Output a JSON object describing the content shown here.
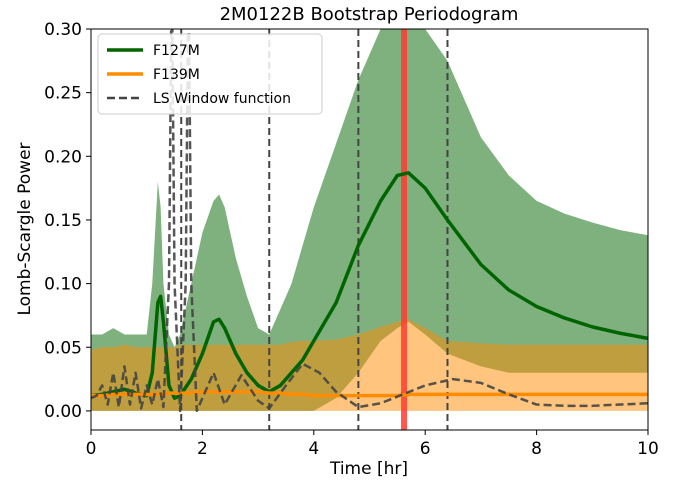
{
  "chart_data": {
    "type": "line",
    "title": "2M0122B Bootstrap Periodogram",
    "xlabel": "Time [hr]",
    "ylabel": "Lomb-Scargle Power",
    "xlim": [
      0,
      10
    ],
    "ylim": [
      -0.015,
      0.3
    ],
    "xticks": [
      0,
      2,
      4,
      6,
      8,
      10
    ],
    "yticks": [
      {
        "value": 0,
        "label": "0.00"
      },
      {
        "value": 0.05,
        "label": "0.05"
      },
      {
        "value": 0.1,
        "label": "0.10"
      },
      {
        "value": 0.15,
        "label": "0.15"
      },
      {
        "value": 0.2,
        "label": "0.20"
      },
      {
        "value": 0.25,
        "label": "0.25"
      },
      {
        "value": 0.3,
        "label": "0.30"
      }
    ],
    "legend": "upper left",
    "vlines": [
      1.62,
      3.2,
      4.8,
      6.4
    ],
    "vline_color": "#444444",
    "highlight_x": 5.62,
    "highlight_color": "#ff3b2f",
    "series": [
      {
        "name": "F127M",
        "color": "#006400",
        "style": "solid",
        "x": [
          0,
          0.2,
          0.4,
          0.6,
          0.8,
          1.0,
          1.1,
          1.2,
          1.25,
          1.3,
          1.4,
          1.5,
          1.6,
          1.8,
          2.0,
          2.2,
          2.3,
          2.4,
          2.6,
          2.8,
          3.0,
          3.2,
          3.4,
          3.6,
          3.8,
          4.0,
          4.4,
          4.8,
          5.2,
          5.5,
          5.7,
          6.0,
          6.4,
          7.0,
          7.5,
          8.0,
          8.5,
          9.0,
          9.5,
          10
        ],
        "values": [
          0.012,
          0.013,
          0.015,
          0.017,
          0.014,
          0.012,
          0.03,
          0.085,
          0.09,
          0.07,
          0.02,
          0.01,
          0.012,
          0.025,
          0.045,
          0.07,
          0.072,
          0.065,
          0.045,
          0.03,
          0.02,
          0.015,
          0.02,
          0.03,
          0.04,
          0.055,
          0.085,
          0.13,
          0.165,
          0.185,
          0.187,
          0.175,
          0.15,
          0.115,
          0.095,
          0.082,
          0.073,
          0.066,
          0.061,
          0.057
        ],
        "upper": [
          0.06,
          0.06,
          0.065,
          0.06,
          0.06,
          0.06,
          0.1,
          0.18,
          0.16,
          0.1,
          0.06,
          0.05,
          0.06,
          0.1,
          0.14,
          0.165,
          0.17,
          0.16,
          0.12,
          0.09,
          0.065,
          0.06,
          0.08,
          0.1,
          0.13,
          0.16,
          0.21,
          0.26,
          0.3,
          0.3,
          0.3,
          0.3,
          0.275,
          0.215,
          0.185,
          0.165,
          0.155,
          0.148,
          0.142,
          0.138
        ],
        "lower": [
          0,
          0,
          0,
          0,
          0,
          0,
          0,
          0,
          0,
          0,
          0,
          0,
          0,
          0,
          0,
          0,
          0,
          0,
          0,
          0,
          0,
          0,
          0,
          0,
          0,
          0,
          0.01,
          0.03,
          0.055,
          0.065,
          0.07,
          0.06,
          0.045,
          0.035,
          0.03,
          0.03,
          0.03,
          0.03,
          0.03,
          0.03
        ]
      },
      {
        "name": "F139M",
        "color": "#ff8c00",
        "style": "solid",
        "x": [
          0,
          0.2,
          0.4,
          0.6,
          0.8,
          1.0,
          1.1,
          1.2,
          1.25,
          1.3,
          1.4,
          1.5,
          1.6,
          1.8,
          2.0,
          2.2,
          2.3,
          2.4,
          2.6,
          2.8,
          3.0,
          3.2,
          3.4,
          3.6,
          3.8,
          4.0,
          4.4,
          4.8,
          5.2,
          5.5,
          5.7,
          6.0,
          6.4,
          7.0,
          7.5,
          8.0,
          8.5,
          9.0,
          9.5,
          10
        ],
        "values": [
          0.012,
          0.012,
          0.013,
          0.013,
          0.013,
          0.013,
          0.013,
          0.013,
          0.013,
          0.013,
          0.014,
          0.014,
          0.014,
          0.014,
          0.015,
          0.015,
          0.015,
          0.015,
          0.015,
          0.015,
          0.015,
          0.014,
          0.014,
          0.013,
          0.013,
          0.012,
          0.012,
          0.012,
          0.012,
          0.012,
          0.013,
          0.013,
          0.013,
          0.013,
          0.013,
          0.013,
          0.013,
          0.013,
          0.013,
          0.013
        ],
        "upper": [
          0.048,
          0.05,
          0.05,
          0.052,
          0.05,
          0.05,
          0.05,
          0.05,
          0.05,
          0.05,
          0.05,
          0.05,
          0.052,
          0.052,
          0.052,
          0.052,
          0.052,
          0.052,
          0.052,
          0.052,
          0.052,
          0.052,
          0.052,
          0.054,
          0.055,
          0.055,
          0.056,
          0.06,
          0.066,
          0.07,
          0.072,
          0.065,
          0.055,
          0.053,
          0.052,
          0.052,
          0.052,
          0.052,
          0.052,
          0.052
        ],
        "lower": [
          0,
          0,
          0,
          0,
          0,
          0,
          0,
          0,
          0,
          0,
          0,
          0,
          0,
          0,
          0,
          0,
          0,
          0,
          0,
          0,
          0,
          0,
          0,
          0,
          0,
          0,
          0,
          0,
          0,
          0,
          0,
          0,
          0,
          0,
          0,
          0,
          0,
          0,
          0,
          0
        ]
      },
      {
        "name": "LS Window function",
        "color": "#444444",
        "style": "dashed",
        "x": [
          0,
          0.1,
          0.2,
          0.3,
          0.4,
          0.5,
          0.6,
          0.7,
          0.8,
          0.9,
          1.0,
          1.1,
          1.2,
          1.3,
          1.4,
          1.45,
          1.5,
          1.6,
          1.7,
          1.75,
          1.8,
          1.9,
          2.0,
          2.2,
          2.4,
          2.7,
          3.0,
          3.2,
          3.5,
          3.8,
          4.1,
          4.4,
          4.8,
          5.2,
          5.6,
          6.0,
          6.5,
          7.0,
          7.5,
          8.0,
          8.5,
          9.0,
          10
        ],
        "values": [
          0.01,
          0.012,
          0.02,
          0.005,
          0.03,
          0.003,
          0.035,
          0.005,
          0.03,
          0.002,
          0.02,
          0.005,
          0.025,
          0.003,
          0.1,
          0.35,
          0.1,
          0.0,
          0.1,
          0.35,
          0.1,
          0.0,
          0.01,
          0.03,
          0.005,
          0.028,
          0.008,
          0.002,
          0.02,
          0.037,
          0.03,
          0.015,
          0.003,
          0.006,
          0.013,
          0.02,
          0.025,
          0.022,
          0.013,
          0.005,
          0.004,
          0.004,
          0.006
        ]
      }
    ]
  }
}
